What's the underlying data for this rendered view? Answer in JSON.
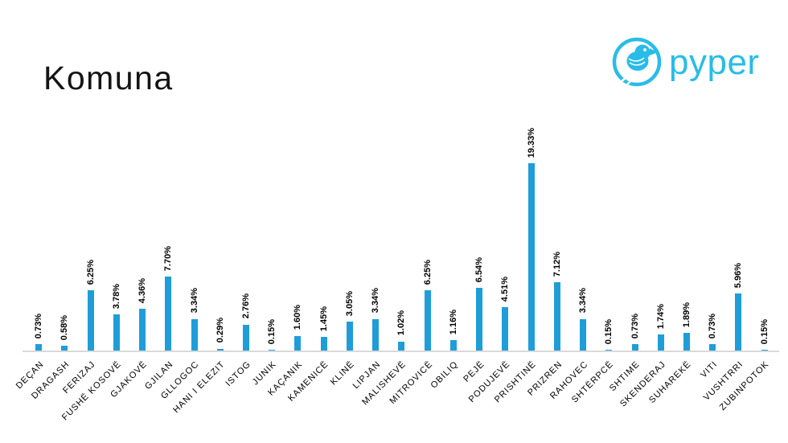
{
  "page": {
    "title": "Komuna"
  },
  "logo": {
    "text": "pyper",
    "icon": "pyper-bird-logo",
    "color": "#29bce8"
  },
  "chart_data": {
    "type": "bar",
    "title": "Komuna",
    "xlabel": "",
    "ylabel": "",
    "ylim": [
      0,
      20
    ],
    "grid": false,
    "legend": "none",
    "bar_color": "#1f9dd9",
    "axis_color": "#d9d9d9",
    "value_label_rotation": 90,
    "category_label_rotation": 45,
    "categories": [
      "DEÇAN",
      "DRAGASH",
      "FERIZAJ",
      "FUSHË KOSOVË",
      "GJAKOVË",
      "GJILAN",
      "GLLOGOC",
      "HANI I ELEZIT",
      "ISTOG",
      "JUNIK",
      "KAÇANIK",
      "KAMENICË",
      "KLINË",
      "LIPJAN",
      "MALISHEVË",
      "MITROVICË",
      "OBILIQ",
      "PEJË",
      "PODUJEVË",
      "PRISHTINË",
      "PRIZREN",
      "RAHOVEC",
      "SHTËRPCË",
      "SHTIME",
      "SKENDERAJ",
      "SUHAREKË",
      "VITI",
      "VUSHTRRI",
      "ZUBINPOTOK"
    ],
    "values": [
      0.73,
      0.58,
      6.25,
      3.78,
      4.36,
      7.7,
      3.34,
      0.29,
      2.76,
      0.15,
      1.6,
      1.45,
      3.05,
      3.34,
      1.02,
      6.25,
      1.16,
      6.54,
      4.51,
      19.33,
      7.12,
      3.34,
      0.15,
      0.73,
      1.74,
      1.89,
      0.73,
      5.96,
      0.15
    ],
    "value_labels": [
      "0.73%",
      "0.58%",
      "6.25%",
      "3.78%",
      "4.36%",
      "7.70%",
      "3.34%",
      "0.29%",
      "2.76%",
      "0.15%",
      "1.60%",
      "1.45%",
      "3.05%",
      "3.34%",
      "1.02%",
      "6.25%",
      "1.16%",
      "6.54%",
      "4.51%",
      "19.33%",
      "7.12%",
      "3.34%",
      "0.15%",
      "0.73%",
      "1.74%",
      "1.89%",
      "0.73%",
      "5.96%",
      "0.15%"
    ]
  }
}
